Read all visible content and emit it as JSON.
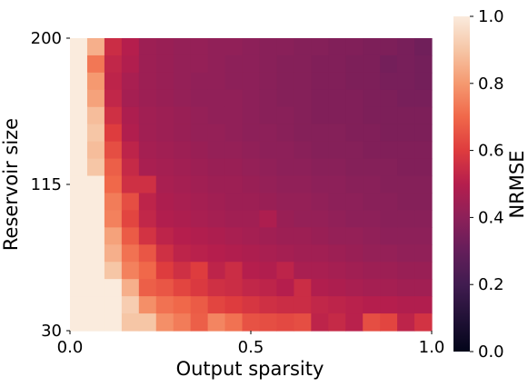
{
  "chart_data": {
    "type": "heatmap",
    "title": "",
    "xlabel": "Output sparsity",
    "ylabel": "Reservoir size",
    "x_tick_labels": [
      "0.0",
      "0.5",
      "1.0"
    ],
    "x_tick_values": [
      0.0,
      0.5,
      1.0
    ],
    "y_tick_labels": [
      "200",
      "115",
      "30"
    ],
    "y_tick_values": [
      200,
      115,
      30
    ],
    "xlim": [
      0,
      1
    ],
    "ylim": [
      30,
      200
    ],
    "n_cols": 21,
    "n_rows": 17,
    "colorbar": {
      "label": "NRMSE",
      "range": [
        0.0,
        1.0
      ],
      "tick_labels": [
        "0.0",
        "0.2",
        "0.4",
        "0.6",
        "0.8",
        "1.0"
      ],
      "tick_values": [
        0.0,
        0.2,
        0.4,
        0.6,
        0.8,
        1.0
      ],
      "colormap": "rocket"
    },
    "values_top_to_bottom": [
      [
        1.0,
        0.85,
        0.55,
        0.5,
        0.44,
        0.43,
        0.42,
        0.42,
        0.41,
        0.41,
        0.4,
        0.39,
        0.39,
        0.38,
        0.38,
        0.37,
        0.37,
        0.36,
        0.36,
        0.35,
        0.33
      ],
      [
        1.0,
        0.73,
        0.53,
        0.49,
        0.44,
        0.43,
        0.42,
        0.42,
        0.41,
        0.4,
        0.4,
        0.39,
        0.38,
        0.38,
        0.37,
        0.37,
        0.36,
        0.36,
        0.34,
        0.35,
        0.34
      ],
      [
        1.0,
        0.8,
        0.52,
        0.47,
        0.44,
        0.43,
        0.42,
        0.41,
        0.41,
        0.4,
        0.4,
        0.39,
        0.38,
        0.38,
        0.37,
        0.37,
        0.36,
        0.36,
        0.35,
        0.35,
        0.34
      ],
      [
        1.0,
        0.82,
        0.53,
        0.46,
        0.44,
        0.43,
        0.42,
        0.41,
        0.41,
        0.41,
        0.4,
        0.39,
        0.38,
        0.38,
        0.37,
        0.37,
        0.37,
        0.36,
        0.36,
        0.35,
        0.35
      ],
      [
        1.0,
        0.88,
        0.56,
        0.48,
        0.45,
        0.44,
        0.43,
        0.42,
        0.41,
        0.41,
        0.4,
        0.39,
        0.39,
        0.38,
        0.37,
        0.37,
        0.37,
        0.36,
        0.36,
        0.36,
        0.36
      ],
      [
        1.0,
        0.9,
        0.6,
        0.49,
        0.45,
        0.44,
        0.43,
        0.42,
        0.42,
        0.41,
        0.4,
        0.4,
        0.39,
        0.38,
        0.38,
        0.38,
        0.37,
        0.37,
        0.36,
        0.36,
        0.36
      ],
      [
        1.0,
        0.88,
        0.64,
        0.52,
        0.46,
        0.45,
        0.44,
        0.43,
        0.42,
        0.42,
        0.41,
        0.4,
        0.4,
        0.39,
        0.38,
        0.38,
        0.38,
        0.37,
        0.37,
        0.37,
        0.37
      ],
      [
        1.0,
        0.9,
        0.68,
        0.54,
        0.47,
        0.46,
        0.45,
        0.44,
        0.43,
        0.43,
        0.42,
        0.41,
        0.4,
        0.4,
        0.39,
        0.39,
        0.38,
        0.38,
        0.38,
        0.37,
        0.37
      ],
      [
        1.0,
        1.0,
        0.7,
        0.56,
        0.56,
        0.47,
        0.46,
        0.45,
        0.44,
        0.44,
        0.43,
        0.42,
        0.41,
        0.41,
        0.4,
        0.4,
        0.39,
        0.39,
        0.38,
        0.38,
        0.38
      ],
      [
        1.0,
        1.0,
        0.74,
        0.64,
        0.52,
        0.48,
        0.47,
        0.46,
        0.45,
        0.44,
        0.44,
        0.43,
        0.42,
        0.42,
        0.41,
        0.4,
        0.4,
        0.39,
        0.39,
        0.38,
        0.38
      ],
      [
        1.0,
        1.0,
        0.75,
        0.62,
        0.53,
        0.49,
        0.48,
        0.47,
        0.46,
        0.45,
        0.45,
        0.48,
        0.43,
        0.42,
        0.42,
        0.41,
        0.4,
        0.4,
        0.39,
        0.39,
        0.39
      ],
      [
        1.0,
        1.0,
        0.82,
        0.67,
        0.57,
        0.52,
        0.5,
        0.49,
        0.48,
        0.47,
        0.46,
        0.45,
        0.44,
        0.44,
        0.43,
        0.42,
        0.42,
        0.41,
        0.4,
        0.4,
        0.4
      ],
      [
        1.0,
        1.0,
        0.85,
        0.72,
        0.66,
        0.56,
        0.52,
        0.51,
        0.5,
        0.49,
        0.48,
        0.47,
        0.46,
        0.45,
        0.45,
        0.44,
        0.43,
        0.42,
        0.42,
        0.41,
        0.41
      ],
      [
        1.0,
        1.0,
        0.9,
        0.75,
        0.7,
        0.6,
        0.56,
        0.6,
        0.52,
        0.55,
        0.5,
        0.49,
        0.52,
        0.47,
        0.47,
        0.46,
        0.45,
        0.44,
        0.44,
        0.43,
        0.43
      ],
      [
        1.0,
        1.0,
        1.0,
        0.85,
        0.68,
        0.66,
        0.62,
        0.59,
        0.56,
        0.55,
        0.53,
        0.52,
        0.5,
        0.55,
        0.49,
        0.48,
        0.47,
        0.46,
        0.46,
        0.45,
        0.45
      ],
      [
        1.0,
        1.0,
        1.0,
        0.92,
        0.78,
        0.72,
        0.7,
        0.67,
        0.62,
        0.6,
        0.58,
        0.56,
        0.55,
        0.55,
        0.53,
        0.52,
        0.51,
        0.5,
        0.5,
        0.49,
        0.49
      ],
      [
        1.0,
        1.0,
        1.0,
        0.9,
        0.9,
        0.78,
        0.74,
        0.68,
        0.76,
        0.72,
        0.65,
        0.64,
        0.63,
        0.64,
        0.52,
        0.54,
        0.51,
        0.64,
        0.62,
        0.52,
        0.57
      ]
    ]
  }
}
